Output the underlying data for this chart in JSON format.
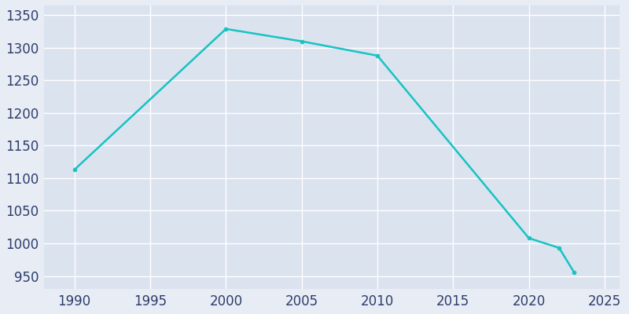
{
  "years": [
    1990,
    2000,
    2005,
    2010,
    2020,
    2022,
    2023
  ],
  "population": [
    1113,
    1329,
    1310,
    1288,
    1008,
    993,
    955
  ],
  "line_color": "#17C3C3",
  "marker": "o",
  "marker_size": 3,
  "line_width": 1.8,
  "bg_color": "#E8ECF5",
  "plot_bg_color": "#DBE3EF",
  "grid_color": "#FFFFFF",
  "xlim": [
    1988,
    2026
  ],
  "ylim": [
    930,
    1365
  ],
  "xticks": [
    1990,
    1995,
    2000,
    2005,
    2010,
    2015,
    2020,
    2025
  ],
  "yticks": [
    950,
    1000,
    1050,
    1100,
    1150,
    1200,
    1250,
    1300,
    1350
  ],
  "tick_color": "#2D3D6B",
  "tick_fontsize": 12,
  "spine_visible": false
}
